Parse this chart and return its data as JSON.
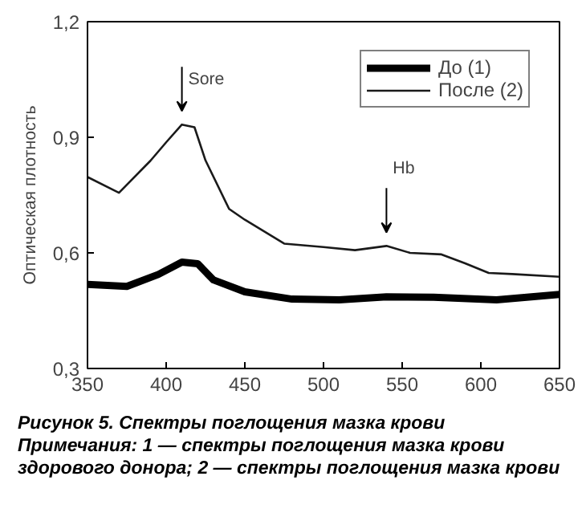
{
  "chart_data": {
    "type": "line",
    "title": "Рисунок 5. Спектры поглощения мазка крови",
    "ylabel": "Оптическая плотность",
    "xlim": [
      350,
      650
    ],
    "xticks": [
      350,
      400,
      450,
      500,
      550,
      600,
      650
    ],
    "ylim": [
      0.3,
      1.2
    ],
    "yticks": [
      {
        "value": 0.3,
        "label": "0,3"
      },
      {
        "value": 0.6,
        "label": "0,6"
      },
      {
        "value": 0.9,
        "label": "0,9"
      },
      {
        "value": 1.2,
        "label": "1,2"
      }
    ],
    "grid": false,
    "legend": "top right",
    "marker": "none",
    "line_style": "solid",
    "series": [
      {
        "name": "До (1)",
        "color": "#000000",
        "x": [
          350,
          375,
          395,
          410,
          420,
          430,
          450,
          480,
          510,
          540,
          570,
          610,
          650
        ],
        "values": [
          0.518,
          0.513,
          0.544,
          0.576,
          0.572,
          0.53,
          0.499,
          0.48,
          0.478,
          0.486,
          0.485,
          0.478,
          0.492
        ]
      },
      {
        "name": "После (2)",
        "color": "#1a1a1a",
        "x": [
          350,
          370,
          390,
          400,
          410,
          418,
          425,
          440,
          450,
          475,
          500,
          520,
          540,
          555,
          575,
          590,
          605,
          620,
          650
        ],
        "values": [
          0.797,
          0.756,
          0.839,
          0.887,
          0.933,
          0.926,
          0.84,
          0.714,
          0.686,
          0.624,
          0.615,
          0.607,
          0.618,
          0.6,
          0.596,
          0.573,
          0.548,
          0.545,
          0.538
        ]
      }
    ],
    "annotations": [
      {
        "text": "Sore",
        "x": 410,
        "y": 0.933
      },
      {
        "text": "Hb",
        "x": 540,
        "y": 0.618
      },
      "Примечания: 1 — спектры поглощения мазка крови здорового донора; 2 — спектры поглощения мазка крови"
    ]
  }
}
